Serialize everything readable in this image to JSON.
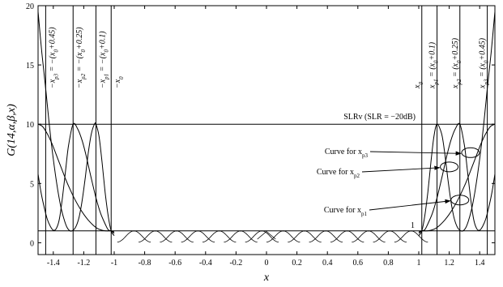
{
  "chart_data": {
    "type": "line",
    "xlabel": "x",
    "ylabel": "G(14,α,β,x)",
    "xlim": [
      -1.5,
      1.5
    ],
    "ylim": [
      -1,
      20
    ],
    "x_ticks": [
      -1.4,
      -1.2,
      -1,
      -0.8,
      -0.6,
      -0.4,
      -0.2,
      0,
      0.2,
      0.4,
      0.6,
      0.8,
      1,
      1.2,
      1.4
    ],
    "x_tick_labels": [
      "-1.4",
      "-1.2",
      "-1",
      "-0.8",
      "-0.6",
      "-0.4",
      "-0.2",
      "0",
      "0.2",
      "0.4",
      "0.6",
      "0.8",
      "1",
      "1.2",
      "1.4"
    ],
    "y_ticks": [
      0,
      5,
      10,
      15,
      20
    ],
    "y_tick_labels": [
      "0",
      "5",
      "10",
      "15",
      "20"
    ],
    "grid": false,
    "legend": "none",
    "ripple_level": 1,
    "slr_level": 10,
    "slr_label": "SLRv (SLR = −20dB)",
    "one_label": "1",
    "vertical_lines": [
      {
        "x": -1.45,
        "label": "−x_p3 = −(x_0+0.45)"
      },
      {
        "x": -1.27,
        "label": "−x_p2 = −(x_0+0.25)"
      },
      {
        "x": -1.12,
        "label": "−x_p1 = −(x_0+0.1)"
      },
      {
        "x": -1.02,
        "label": "−x_0"
      },
      {
        "x": 1.02,
        "label": "x_0"
      },
      {
        "x": 1.12,
        "label": "x_p1 = (x_0+0.1)"
      },
      {
        "x": 1.27,
        "label": "x_p2 = (x_0+0.25)"
      },
      {
        "x": 1.45,
        "label": "x_p3 = (x_0+0.45)"
      }
    ],
    "series": [
      {
        "x": [
          -1.5,
          -1.475,
          -1.45,
          -1.43,
          -1.41,
          -1.39,
          -1.37,
          -1.35,
          -1.33,
          -1.31,
          -1.29,
          -1.27,
          -1.25,
          -1.23,
          -1.21,
          -1.19,
          -1.17,
          -1.15,
          -1.13,
          -1.12,
          -1.1,
          -1.08,
          -1.06,
          -1.04,
          -1.02,
          -1.0
        ],
        "y": [
          19.5,
          16.0,
          13.0,
          10.4,
          8.1,
          6.1,
          4.4,
          3.0,
          2.0,
          1.3,
          1.0,
          1.05,
          1.4,
          2.2,
          3.6,
          5.5,
          7.6,
          9.2,
          10.0,
          10.0,
          9.0,
          6.8,
          4.3,
          2.3,
          1.0,
          0.6
        ]
      },
      {
        "x": [
          -1.5,
          -1.48,
          -1.46,
          -1.44,
          -1.42,
          -1.4,
          -1.38,
          -1.36,
          -1.34,
          -1.32,
          -1.3,
          -1.27,
          -1.24,
          -1.21,
          -1.18,
          -1.15,
          -1.12,
          -1.09,
          -1.06,
          -1.04,
          -1.02,
          -1.0
        ],
        "y": [
          5.8,
          4.2,
          3.0,
          2.0,
          1.4,
          1.05,
          1.2,
          2.0,
          3.8,
          6.0,
          8.2,
          10.0,
          9.6,
          8.6,
          7.1,
          5.4,
          3.8,
          2.5,
          1.6,
          1.1,
          1.0,
          0.8
        ]
      },
      {
        "x": [
          -1.5,
          -1.47,
          -1.44,
          -1.41,
          -1.38,
          -1.35,
          -1.32,
          -1.29,
          -1.26,
          -1.23,
          -1.2,
          -1.17,
          -1.14,
          -1.11,
          -1.08,
          -1.05,
          -1.02,
          -1.0
        ],
        "y": [
          10.0,
          9.8,
          9.2,
          8.4,
          7.4,
          6.4,
          5.4,
          4.5,
          3.7,
          3.0,
          2.4,
          1.9,
          1.5,
          1.2,
          1.05,
          1.0,
          1.0,
          0.9
        ]
      },
      {
        "x": [
          1.0,
          1.02,
          1.04,
          1.06,
          1.08,
          1.1,
          1.12,
          1.15,
          1.17,
          1.19,
          1.21,
          1.23,
          1.25,
          1.27,
          1.29,
          1.31,
          1.33,
          1.35,
          1.37,
          1.39,
          1.41,
          1.43,
          1.45,
          1.475,
          1.5
        ],
        "y": [
          0.6,
          1.0,
          2.3,
          4.3,
          6.8,
          9.0,
          10.0,
          9.2,
          7.6,
          5.5,
          3.6,
          2.2,
          1.4,
          1.05,
          1.0,
          1.3,
          2.0,
          3.0,
          4.4,
          6.1,
          8.1,
          10.4,
          13.0,
          16.0,
          19.5
        ]
      },
      {
        "x": [
          1.0,
          1.02,
          1.04,
          1.06,
          1.09,
          1.12,
          1.15,
          1.18,
          1.21,
          1.24,
          1.27,
          1.3,
          1.32,
          1.34,
          1.36,
          1.38,
          1.4,
          1.42,
          1.44,
          1.46,
          1.48,
          1.5
        ],
        "y": [
          0.8,
          1.0,
          1.1,
          1.6,
          2.5,
          3.8,
          5.4,
          7.1,
          8.6,
          9.6,
          10.0,
          8.2,
          6.0,
          3.8,
          2.0,
          1.2,
          1.05,
          1.4,
          2.0,
          3.0,
          4.2,
          5.8
        ]
      },
      {
        "x": [
          1.0,
          1.02,
          1.05,
          1.08,
          1.11,
          1.14,
          1.17,
          1.2,
          1.23,
          1.26,
          1.29,
          1.32,
          1.35,
          1.38,
          1.41,
          1.44,
          1.47,
          1.5
        ],
        "y": [
          0.9,
          1.0,
          1.0,
          1.05,
          1.2,
          1.5,
          1.9,
          2.4,
          3.0,
          3.7,
          4.5,
          5.4,
          6.4,
          7.4,
          8.4,
          9.2,
          9.8,
          10.0
        ]
      }
    ],
    "annotations": [
      {
        "text": "Curve for x_p3",
        "point_x": 1.34,
        "point_y": 7.6
      },
      {
        "text": "Curve for x_p2",
        "point_x": 1.2,
        "point_y": 6.4
      },
      {
        "text": "Curve for x_p1",
        "point_x": 1.27,
        "point_y": 3.6
      }
    ]
  }
}
